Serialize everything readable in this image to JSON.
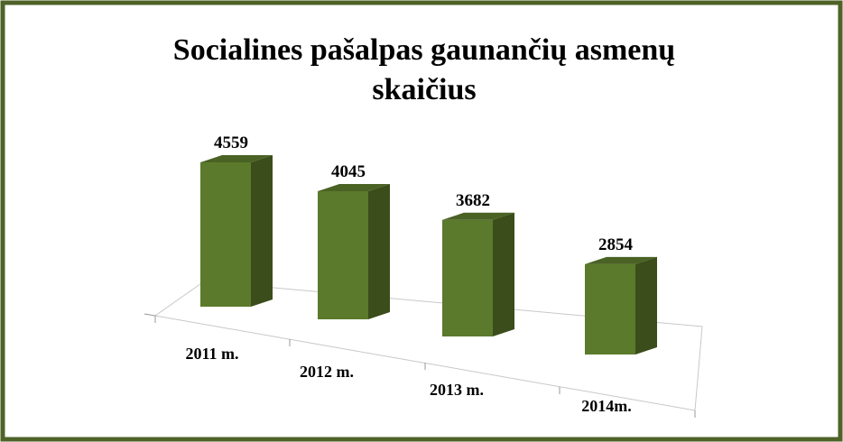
{
  "chart_data": {
    "type": "bar3d",
    "title": [
      "Socialines pašalpas gaunančių asmenų",
      "skaičius"
    ],
    "categories": [
      "2011 m.",
      "2012 m.",
      "2013 m.",
      "2014m."
    ],
    "values": [
      4559,
      4045,
      3682,
      2854
    ],
    "color": "#5b7a2b"
  }
}
